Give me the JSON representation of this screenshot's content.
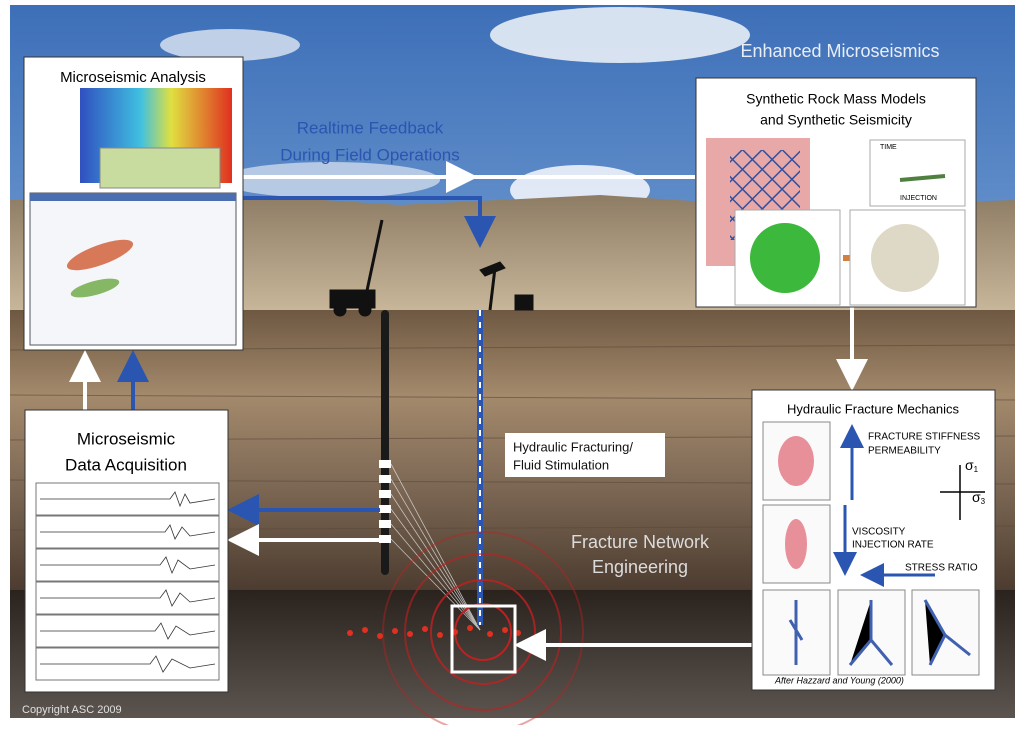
{
  "header": {
    "title": "Enhanced Microseismics"
  },
  "panels": {
    "analysis": {
      "title": "Microseismic Analysis"
    },
    "synthetic": {
      "title": [
        "Synthetic Rock Mass Models",
        "and Synthetic Seismicity"
      ],
      "labels": [
        "TIME",
        "INJECTION"
      ]
    },
    "mechanics": {
      "title": "Hydraulic Fracture Mechanics",
      "labels": [
        "FRACTURE STIFFNESS",
        "PERMEABILITY",
        "VISCOSITY",
        "INJECTION RATE",
        "STRESS RATIO"
      ],
      "sigma1": {
        "symbol": "σ",
        "subscript": "1"
      },
      "sigma3": {
        "symbol": "σ",
        "subscript": "3"
      },
      "credit": "After Hazzard and Young (2000)"
    },
    "acquisition": {
      "title": [
        "Microseismic",
        "Data Acquisition"
      ]
    }
  },
  "annotations": {
    "feedback": [
      "Realtime Feedback",
      "During Field Operations"
    ],
    "fracturing": [
      "Hydraulic Fracturing/",
      "Fluid Stimulation"
    ],
    "network": [
      "Fracture Network",
      "Engineering"
    ]
  },
  "copyright": "Copyright ASC 2009"
}
